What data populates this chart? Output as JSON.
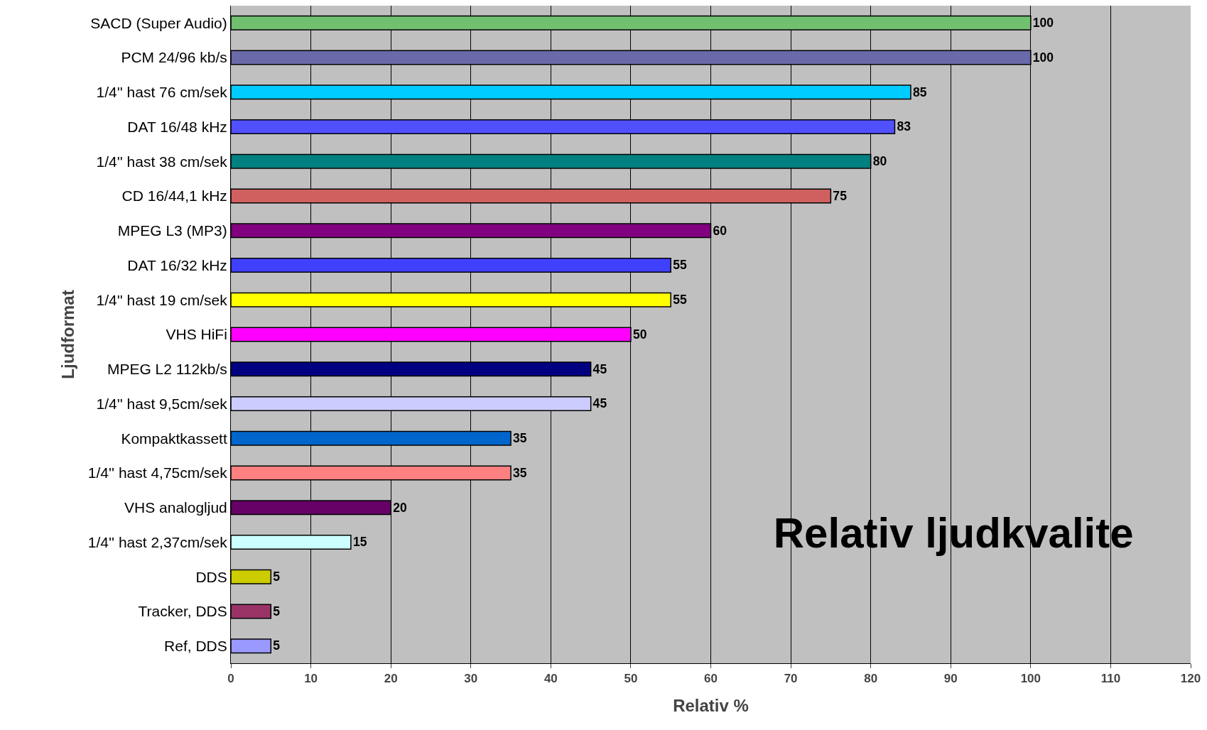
{
  "chart_data": {
    "type": "bar",
    "orientation": "horizontal",
    "title": "Relativ ljudkvalite",
    "xlabel": "Relativ %",
    "ylabel": "Ljudformat",
    "categories": [
      "SACD (Super Audio)",
      "PCM 24/96 kb/s",
      "1/4'' hast 76 cm/sek",
      "DAT 16/48 kHz",
      "1/4'' hast 38 cm/sek",
      "CD 16/44,1 kHz",
      "MPEG L3 (MP3)",
      "DAT 16/32 kHz",
      "1/4'' hast 19 cm/sek",
      "VHS HiFi",
      "MPEG L2 112kb/s",
      "1/4'' hast 9,5cm/sek",
      "Kompaktkassett",
      "1/4'' hast 4,75cm/sek",
      "VHS analogljud",
      "1/4'' hast 2,37cm/sek",
      "DDS",
      "Tracker, DDS",
      "Ref, DDS"
    ],
    "values": [
      100,
      100,
      85,
      83,
      80,
      75,
      60,
      55,
      55,
      50,
      45,
      45,
      35,
      35,
      20,
      15,
      5,
      5,
      5
    ],
    "colors": [
      "#70c070",
      "#6a6aaa",
      "#00ccff",
      "#5050ff",
      "#008080",
      "#d06060",
      "#800080",
      "#4040ff",
      "#ffff00",
      "#ff00ff",
      "#000080",
      "#ccccff",
      "#0066cc",
      "#ff8080",
      "#660066",
      "#ccffff",
      "#cccc00",
      "#993366",
      "#9999ff"
    ],
    "xlim": [
      0,
      120
    ],
    "xticks": [
      0,
      10,
      20,
      30,
      40,
      50,
      60,
      70,
      80,
      90,
      100,
      110,
      120
    ],
    "grid": "x",
    "data_labels": true
  }
}
